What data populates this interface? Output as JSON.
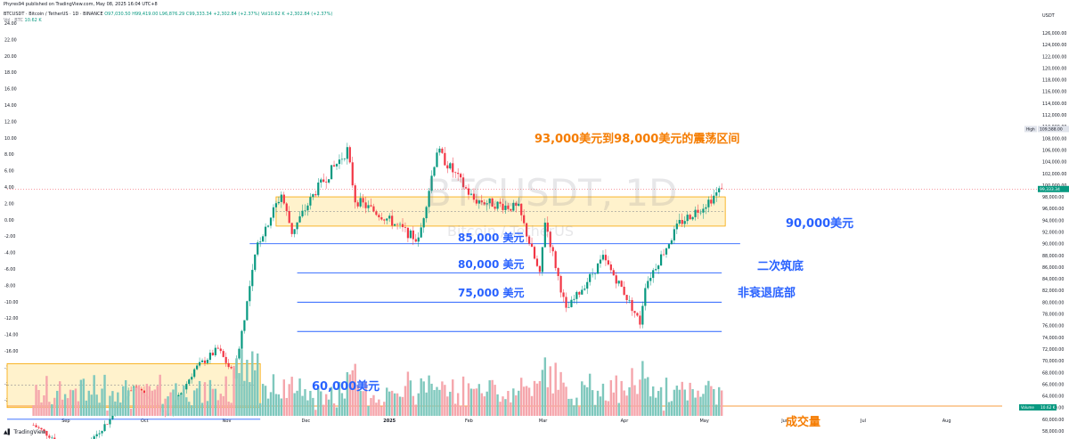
{
  "published": "Phyres94 published on TradingView.com, May 08, 2025 16:04 UTC+8",
  "symbol_line": "BTCUSDT · Bitcoin / TetherUS · 1D · BINANCE",
  "ohlc": {
    "open": "O97,030.50",
    "high": "H99,419.00",
    "low": "L96,876.29",
    "close": "C99,333.34",
    "change": "+2,302.84 (+2.37%)",
    "vol": "Vol10.62 K",
    "vol_change": "+2,302.84 (+2.37%)"
  },
  "vol_line": {
    "label": "Vol · BTC",
    "value": "10.62 K"
  },
  "currency": "USDT",
  "watermark": {
    "symbol": "BTCUSDT, 1D",
    "name": "Bitcoin / TetherUS"
  },
  "annotations": {
    "range": "93,000美元到98,000美元的震荡区间",
    "l90": "90,000美元",
    "l85": "85,000 美元",
    "l80": "80,000 美元",
    "l75": "75,000 美元",
    "second_bottom": "二次筑底",
    "non_recession": "非衰退底部",
    "l60": "60,000美元",
    "volume": "成交量"
  },
  "badges": {
    "high_label": "High",
    "high_value": "109,588.00",
    "last_value": "99,333.34",
    "volume_label": "Volume",
    "volume_value": "10.62 K"
  },
  "brand": "TradingView",
  "colors": {
    "up": "#089981",
    "down": "#f23645",
    "vol_up": "#7fc8bd",
    "vol_down": "#f5a6ac",
    "hline": "#2962ff",
    "zone_fill": "#fff2cc",
    "zone_border": "#f7a600",
    "annotation": "#f57c00",
    "annotation_blue": "#2962ff"
  },
  "chart_data": {
    "type": "candlestick",
    "y_right_ticks": [
      "126,000.00",
      "124,000.00",
      "122,000.00",
      "120,000.00",
      "118,000.00",
      "116,000.00",
      "114,000.00",
      "112,000.00",
      "110,000.00",
      "108,000.00",
      "106,000.00",
      "104,000.00",
      "102,000.00",
      "100,000.00",
      "98,000.00",
      "96,000.00",
      "94,000.00",
      "92,000.00",
      "90,000.00",
      "88,000.00",
      "86,000.00",
      "84,000.00",
      "82,000.00",
      "80,000.00",
      "78,000.00",
      "76,000.00",
      "74,000.00",
      "72,000.00",
      "70,000.00",
      "68,000.00",
      "66,000.00",
      "64,000.00",
      "62,000.00",
      "60,000.00",
      "58,000.00"
    ],
    "y_left_ticks": [
      "24.00",
      "22.00",
      "20.00",
      "18.00",
      "16.00",
      "14.00",
      "12.00",
      "10.00",
      "8.00",
      "6.00",
      "4.00",
      "2.00",
      "0.00",
      "-2.00",
      "-4.00",
      "-6.00",
      "-8.00",
      "-10.00",
      "-12.00",
      "-14.00",
      "-16.00",
      "-18.00",
      "-20.00",
      "-22.00"
    ],
    "x_ticks": [
      "Sep",
      "Oct",
      "Nov",
      "Dec",
      "2025",
      "Feb",
      "Mar",
      "Apr",
      "May",
      "Jun",
      "Jul",
      "Aug"
    ],
    "close_path": [
      {
        "date": "2024-08-20",
        "close": 59000
      },
      {
        "date": "2024-09-06",
        "close": 54000
      },
      {
        "date": "2024-09-18",
        "close": 60000
      },
      {
        "date": "2024-09-27",
        "close": 66000
      },
      {
        "date": "2024-10-10",
        "close": 60500
      },
      {
        "date": "2024-10-20",
        "close": 68500
      },
      {
        "date": "2024-10-29",
        "close": 72000
      },
      {
        "date": "2024-11-04",
        "close": 67500
      },
      {
        "date": "2024-11-13",
        "close": 90000
      },
      {
        "date": "2024-11-22",
        "close": 98500
      },
      {
        "date": "2024-11-26",
        "close": 92000
      },
      {
        "date": "2024-12-05",
        "close": 99000
      },
      {
        "date": "2024-12-17",
        "close": 106000
      },
      {
        "date": "2024-12-20",
        "close": 97500
      },
      {
        "date": "2025-01-02",
        "close": 94000
      },
      {
        "date": "2025-01-13",
        "close": 90500
      },
      {
        "date": "2025-01-20",
        "close": 106000
      },
      {
        "date": "2025-02-03",
        "close": 97500
      },
      {
        "date": "2025-02-20",
        "close": 96000
      },
      {
        "date": "2025-02-28",
        "close": 84500
      },
      {
        "date": "2025-03-02",
        "close": 94000
      },
      {
        "date": "2025-03-10",
        "close": 78500
      },
      {
        "date": "2025-03-24",
        "close": 87500
      },
      {
        "date": "2025-03-31",
        "close": 82500
      },
      {
        "date": "2025-04-07",
        "close": 76500
      },
      {
        "date": "2025-04-09",
        "close": 83000
      },
      {
        "date": "2025-04-22",
        "close": 93500
      },
      {
        "date": "2025-05-01",
        "close": 96500
      },
      {
        "date": "2025-05-08",
        "close": 99333
      }
    ],
    "horizontal_levels": [
      90000,
      85000,
      80000,
      75000,
      60000
    ],
    "range_zone": [
      93000,
      98000
    ],
    "early_zone": [
      62000,
      69500
    ],
    "last_close": 99333.34,
    "all_time_high_marker": 109588.0,
    "volume_last": "10.62 K"
  }
}
